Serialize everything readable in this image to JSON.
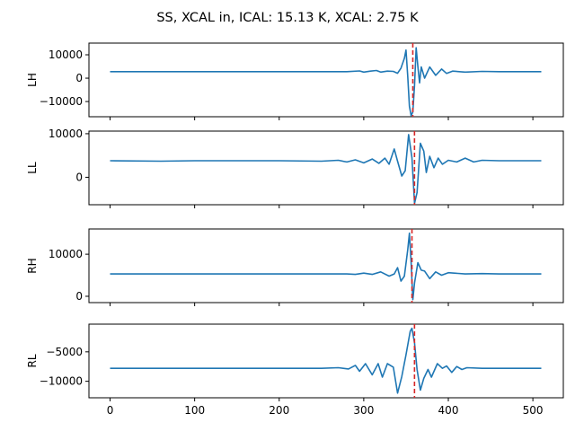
{
  "chart_data": {
    "type": "line",
    "title": "SS, XCAL in, ICAL: 15.13 K, XCAL: 2.75 K",
    "xlim": [
      -25,
      536
    ],
    "xticks": [
      0,
      100,
      200,
      300,
      400,
      500
    ],
    "sharex": true,
    "series_color": "#1f77b4",
    "marker_color": "#d62728",
    "marker_style": "dashed",
    "grid": false,
    "panels": [
      {
        "ylabel": "LH",
        "ylim": [
          -16500,
          15000
        ],
        "yticks": [
          -10000,
          0,
          10000
        ],
        "baseline": 2800,
        "marker_x": 358,
        "series": [
          {
            "points": [
              [
                0,
                2800
              ],
              [
                100,
                2800
              ],
              [
                200,
                2800
              ],
              [
                280,
                2800
              ],
              [
                295,
                3100
              ],
              [
                300,
                2600
              ],
              [
                308,
                3000
              ],
              [
                315,
                3300
              ],
              [
                320,
                2600
              ],
              [
                328,
                3000
              ],
              [
                335,
                2900
              ],
              [
                340,
                2100
              ],
              [
                344,
                4300
              ],
              [
                348,
                8500
              ],
              [
                350,
                12000
              ],
              [
                352,
                1000
              ],
              [
                354,
                -12000
              ],
              [
                356,
                -16000
              ],
              [
                358,
                -14500
              ],
              [
                360,
                -3000
              ],
              [
                362,
                13000
              ],
              [
                364,
                5000
              ],
              [
                366,
                -2000
              ],
              [
                368,
                4800
              ],
              [
                372,
                0
              ],
              [
                378,
                4800
              ],
              [
                385,
                1200
              ],
              [
                392,
                3900
              ],
              [
                398,
                2000
              ],
              [
                405,
                3000
              ],
              [
                420,
                2600
              ],
              [
                440,
                2900
              ],
              [
                460,
                2800
              ],
              [
                510,
                2800
              ]
            ]
          }
        ]
      },
      {
        "ylabel": "LL",
        "ylim": [
          -6300,
          10600
        ],
        "yticks": [
          0,
          10000
        ],
        "baseline": 3800,
        "marker_x": 360,
        "series": [
          {
            "points": [
              [
                0,
                3800
              ],
              [
                60,
                3700
              ],
              [
                100,
                3800
              ],
              [
                140,
                3800
              ],
              [
                200,
                3800
              ],
              [
                250,
                3700
              ],
              [
                270,
                3900
              ],
              [
                280,
                3500
              ],
              [
                290,
                4000
              ],
              [
                300,
                3300
              ],
              [
                310,
                4200
              ],
              [
                318,
                3200
              ],
              [
                325,
                4400
              ],
              [
                330,
                3000
              ],
              [
                336,
                6500
              ],
              [
                340,
                3700
              ],
              [
                345,
                300
              ],
              [
                349,
                1500
              ],
              [
                353,
                9800
              ],
              [
                357,
                4500
              ],
              [
                360,
                -6000
              ],
              [
                363,
                -3500
              ],
              [
                367,
                7800
              ],
              [
                371,
                6000
              ],
              [
                374,
                1100
              ],
              [
                378,
                4800
              ],
              [
                383,
                2200
              ],
              [
                388,
                4400
              ],
              [
                393,
                3000
              ],
              [
                400,
                3900
              ],
              [
                410,
                3500
              ],
              [
                420,
                4400
              ],
              [
                430,
                3500
              ],
              [
                440,
                3900
              ],
              [
                460,
                3800
              ],
              [
                510,
                3800
              ]
            ]
          }
        ]
      },
      {
        "ylabel": "RH",
        "ylim": [
          -1500,
          16000
        ],
        "yticks": [
          0,
          10000
        ],
        "baseline": 5300,
        "marker_x": 357,
        "series": [
          {
            "points": [
              [
                0,
                5300
              ],
              [
                100,
                5300
              ],
              [
                200,
                5300
              ],
              [
                280,
                5300
              ],
              [
                290,
                5200
              ],
              [
                300,
                5500
              ],
              [
                310,
                5200
              ],
              [
                320,
                5800
              ],
              [
                330,
                4800
              ],
              [
                336,
                5300
              ],
              [
                340,
                6800
              ],
              [
                344,
                3600
              ],
              [
                348,
                4800
              ],
              [
                352,
                11000
              ],
              [
                354,
                15000
              ],
              [
                356,
                8000
              ],
              [
                358,
                -800
              ],
              [
                360,
                3200
              ],
              [
                364,
                8000
              ],
              [
                368,
                6200
              ],
              [
                372,
                6000
              ],
              [
                378,
                4200
              ],
              [
                385,
                5800
              ],
              [
                392,
                5000
              ],
              [
                400,
                5600
              ],
              [
                420,
                5300
              ],
              [
                440,
                5400
              ],
              [
                460,
                5300
              ],
              [
                510,
                5300
              ]
            ]
          }
        ]
      },
      {
        "ylabel": "RL",
        "ylim": [
          -12800,
          -300
        ],
        "yticks": [
          -10000,
          -5000
        ],
        "baseline": -7800,
        "marker_x": 360,
        "series": [
          {
            "points": [
              [
                0,
                -7800
              ],
              [
                100,
                -7800
              ],
              [
                200,
                -7800
              ],
              [
                250,
                -7800
              ],
              [
                270,
                -7700
              ],
              [
                282,
                -7900
              ],
              [
                290,
                -7300
              ],
              [
                295,
                -8300
              ],
              [
                302,
                -7000
              ],
              [
                310,
                -8900
              ],
              [
                317,
                -7000
              ],
              [
                322,
                -9300
              ],
              [
                328,
                -7000
              ],
              [
                335,
                -7600
              ],
              [
                340,
                -12000
              ],
              [
                345,
                -9200
              ],
              [
                350,
                -5500
              ],
              [
                355,
                -1500
              ],
              [
                357,
                -1000
              ],
              [
                360,
                -3500
              ],
              [
                363,
                -8000
              ],
              [
                367,
                -11500
              ],
              [
                371,
                -9500
              ],
              [
                376,
                -8000
              ],
              [
                380,
                -9300
              ],
              [
                387,
                -7000
              ],
              [
                393,
                -7800
              ],
              [
                398,
                -7400
              ],
              [
                404,
                -8500
              ],
              [
                410,
                -7500
              ],
              [
                416,
                -8000
              ],
              [
                422,
                -7700
              ],
              [
                440,
                -7800
              ],
              [
                510,
                -7800
              ]
            ]
          }
        ]
      }
    ]
  }
}
